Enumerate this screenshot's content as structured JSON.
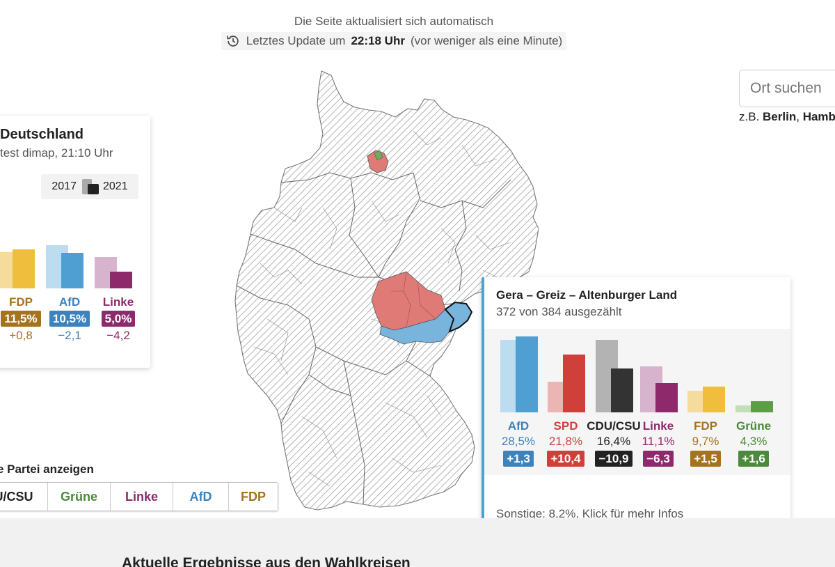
{
  "header": {
    "auto_update": "Die Seite aktualisiert sich automatisch",
    "last_update_prefix": "Letztes Update um",
    "last_update_time": "22:18 Uhr",
    "last_update_suffix": "(vor weniger als eine Minute)",
    "history_icon": "history-clock-icon"
  },
  "search": {
    "placeholder": "Ort suchen",
    "hint_prefix": "z.B.",
    "hint_example1": "Berlin",
    "hint_sep": ",",
    "hint_example2": "Hamb"
  },
  "national_card": {
    "title": "Deutschland",
    "subtitle": "test dimap, 21:10 Uhr",
    "legend_year_old": "2017",
    "legend_year_new": "2021",
    "parties": [
      {
        "name": "FDP",
        "pct": "11,5%",
        "diff": "+0,8",
        "color": "#a5731d",
        "bar_old_color": "#f6dc9c",
        "bar_new_color": "#f0be3d",
        "value_2017": 10.7,
        "value_2021": 11.5
      },
      {
        "name": "AfD",
        "pct": "10,5%",
        "diff": "−2,1",
        "color": "#3c82bd",
        "bar_old_color": "#bcdcef",
        "bar_new_color": "#4f9fd2",
        "value_2017": 12.6,
        "value_2021": 10.5
      },
      {
        "name": "Linke",
        "pct": "5,0%",
        "diff": "−4,2",
        "color": "#8e2a6c",
        "bar_old_color": "#d7b3cd",
        "bar_new_color": "#8e2a6c",
        "value_2017": 9.2,
        "value_2021": 5.0
      }
    ]
  },
  "party_selector": {
    "label": "e Partei anzeigen",
    "buttons": [
      {
        "label": "U/CSU",
        "color": "#222222"
      },
      {
        "label": "Grüne",
        "color": "#4b8a3c"
      },
      {
        "label": "Linke",
        "color": "#8e2a6c"
      },
      {
        "label": "AfD",
        "color": "#3c82bd"
      },
      {
        "label": "FDP",
        "color": "#a5731d"
      }
    ]
  },
  "district_card": {
    "title": "Gera – Greiz – Altenburger Land",
    "counted": "372 von 384 ausgezählt",
    "parties": [
      {
        "name": "AfD",
        "pct": "28,5%",
        "diff": "+1,3",
        "color": "#3c82bd",
        "bar_old_color": "#bcdcef",
        "bar_new_color": "#4f9fd2",
        "value_old": 27.2,
        "value_new": 28.5
      },
      {
        "name": "SPD",
        "pct": "21,8%",
        "diff": "+10,4",
        "color": "#d0403b",
        "bar_old_color": "#eab5b2",
        "bar_new_color": "#d0403b",
        "value_old": 11.4,
        "value_new": 21.8
      },
      {
        "name": "CDU/CSU",
        "pct": "16,4%",
        "diff": "−10,9",
        "color": "#222222",
        "bar_old_color": "#b3b3b3",
        "bar_new_color": "#333333",
        "value_old": 27.3,
        "value_new": 16.4
      },
      {
        "name": "Linke",
        "pct": "11,1%",
        "diff": "−6,3",
        "color": "#8e2a6c",
        "bar_old_color": "#d7b3cd",
        "bar_new_color": "#8e2a6c",
        "value_old": 17.4,
        "value_new": 11.1
      },
      {
        "name": "FDP",
        "pct": "9,7%",
        "diff": "+1,5",
        "color": "#a5731d",
        "bar_old_color": "#f6dc9c",
        "bar_new_color": "#f0be3d",
        "value_old": 8.2,
        "value_new": 9.7
      },
      {
        "name": "Grüne",
        "pct": "4,3%",
        "diff": "+1,6",
        "color": "#4b8a3c",
        "bar_old_color": "#c3dfb8",
        "bar_new_color": "#5b9e44",
        "value_old": 2.7,
        "value_new": 4.3
      }
    ],
    "footer": "Sonstige: 8,2%, Klick für mehr Infos"
  },
  "map": {
    "name": "germany-constituency-map",
    "highlight_colors": {
      "spd": "#e07a76",
      "afd": "#78b4dc",
      "green": "#6cae5a"
    }
  },
  "section": {
    "title": "Aktuelle Ergebnisse aus den Wahlkreisen"
  }
}
